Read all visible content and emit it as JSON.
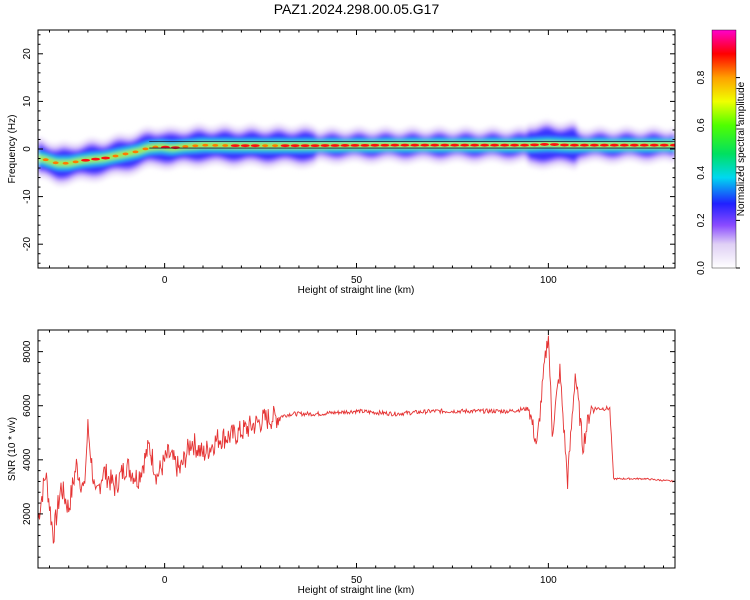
{
  "title": "PAZ1.2024.298.00.05.G17",
  "chart_data": [
    {
      "type": "heatmap",
      "xlabel": "Height of straight line (km)",
      "ylabel": "Frequency (Hz)",
      "xlim": [
        -33,
        133
      ],
      "ylim": [
        -25,
        25
      ],
      "xticks": [
        0,
        50,
        100
      ],
      "yticks": [
        -20,
        -10,
        0,
        10,
        20
      ],
      "colorbar": {
        "label": "Normalized spectral amplitude",
        "range": [
          0,
          1
        ],
        "ticks": [
          "0.0",
          "0.2",
          "0.4",
          "0.6",
          "0.8"
        ]
      },
      "trace": [
        {
          "x": -32,
          "y": -2.0
        },
        {
          "x": -30,
          "y": -2.5
        },
        {
          "x": -28,
          "y": -3.0
        },
        {
          "x": -25,
          "y": -3.0
        },
        {
          "x": -22,
          "y": -2.5
        },
        {
          "x": -19,
          "y": -2.2
        },
        {
          "x": -16,
          "y": -2.0
        },
        {
          "x": -13,
          "y": -1.5
        },
        {
          "x": -10,
          "y": -1.0
        },
        {
          "x": -7,
          "y": -0.5
        },
        {
          "x": -4,
          "y": 0.3
        },
        {
          "x": -1,
          "y": 0.5
        },
        {
          "x": 2,
          "y": 0.2
        },
        {
          "x": 5,
          "y": 0.5
        },
        {
          "x": 10,
          "y": 0.8
        },
        {
          "x": 20,
          "y": 0.7
        },
        {
          "x": 35,
          "y": 0.7
        },
        {
          "x": 60,
          "y": 0.8
        },
        {
          "x": 95,
          "y": 0.8
        },
        {
          "x": 100,
          "y": 1.0
        },
        {
          "x": 105,
          "y": 0.8
        },
        {
          "x": 133,
          "y": 0.8
        }
      ]
    },
    {
      "type": "line",
      "xlabel": "Height of straight line (km)",
      "ylabel": "SNR (10 * v/v)",
      "xlim": [
        -33,
        133
      ],
      "ylim": [
        0,
        8800
      ],
      "xticks": [
        0,
        50,
        100
      ],
      "yticks": [
        2000,
        4000,
        6000,
        8000
      ],
      "series": [
        {
          "color": "#e53333",
          "points": [
            [
              -33,
              1800
            ],
            [
              -31,
              3500
            ],
            [
              -29,
              1200
            ],
            [
              -27,
              3000
            ],
            [
              -25,
              2200
            ],
            [
              -23,
              3800
            ],
            [
              -21,
              2800
            ],
            [
              -20,
              5200
            ],
            [
              -18,
              2500
            ],
            [
              -16,
              3600
            ],
            [
              -13,
              3000
            ],
            [
              -10,
              3800
            ],
            [
              -7,
              3300
            ],
            [
              -4,
              4500
            ],
            [
              -2,
              3400
            ],
            [
              1,
              4200
            ],
            [
              4,
              3600
            ],
            [
              7,
              4700
            ],
            [
              10,
              4200
            ],
            [
              14,
              4800
            ],
            [
              18,
              4900
            ],
            [
              22,
              5200
            ],
            [
              26,
              5500
            ],
            [
              30,
              5600
            ],
            [
              33,
              5700
            ],
            [
              40,
              5700
            ],
            [
              50,
              5800
            ],
            [
              60,
              5700
            ],
            [
              70,
              5800
            ],
            [
              80,
              5800
            ],
            [
              90,
              5800
            ],
            [
              95,
              5900
            ],
            [
              97,
              4500
            ],
            [
              99,
              7500
            ],
            [
              100,
              8700
            ],
            [
              101,
              5000
            ],
            [
              103,
              7300
            ],
            [
              105,
              3200
            ],
            [
              107,
              7200
            ],
            [
              109,
              4500
            ],
            [
              111,
              5900
            ],
            [
              116,
              5900
            ],
            [
              117,
              3300
            ],
            [
              125,
              3300
            ],
            [
              133,
              3200
            ]
          ]
        }
      ]
    }
  ]
}
